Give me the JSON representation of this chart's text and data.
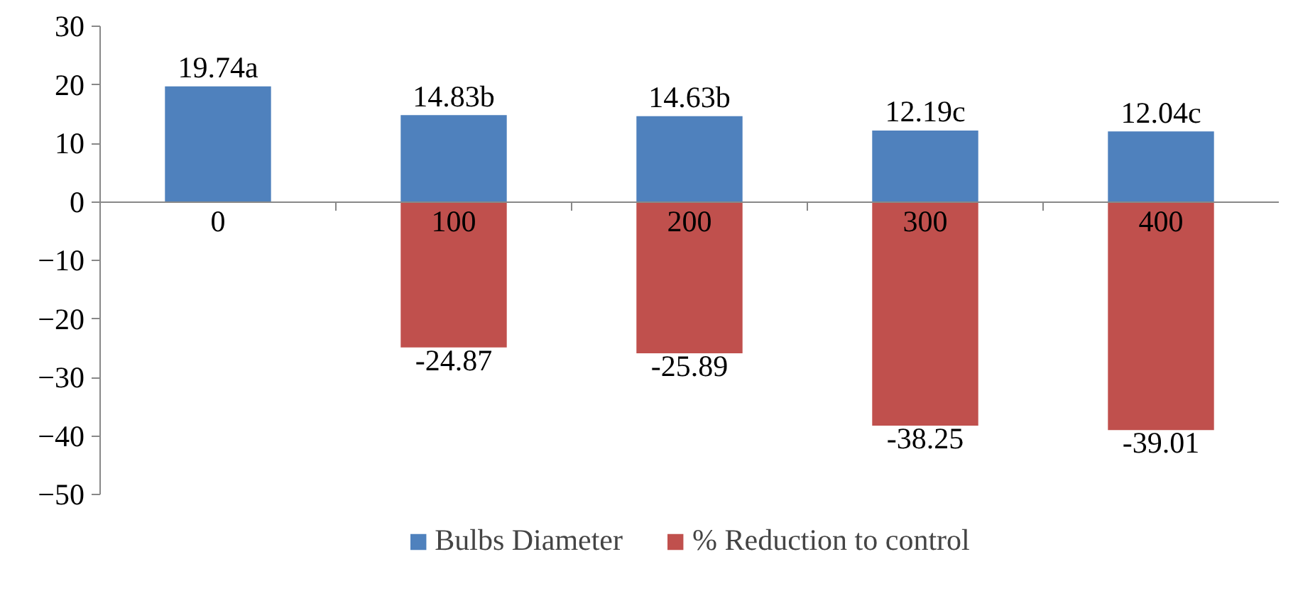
{
  "chart_data": {
    "type": "bar",
    "stacked": true,
    "categories": [
      "0",
      "100",
      "200",
      "300",
      "400"
    ],
    "series": [
      {
        "name": "Bulbs Diameter",
        "color": "#4f81bd",
        "values": [
          19.74,
          14.83,
          14.63,
          12.19,
          12.04
        ],
        "value_labels": [
          "19.74a",
          "14.83b",
          "14.63b",
          "12.19c",
          "12.04c"
        ]
      },
      {
        "name": "% Reduction to control",
        "color": "#c0504d",
        "values": [
          null,
          -24.87,
          -25.89,
          -38.25,
          -39.01
        ],
        "value_labels": [
          null,
          "-24.87",
          "-25.89",
          "-38.25",
          "-39.01"
        ]
      }
    ],
    "ylim": [
      -50,
      30
    ],
    "yticks": [
      -50,
      -40,
      -30,
      -20,
      -10,
      0,
      10,
      20,
      30
    ],
    "grid": false,
    "legend": "bottom"
  }
}
